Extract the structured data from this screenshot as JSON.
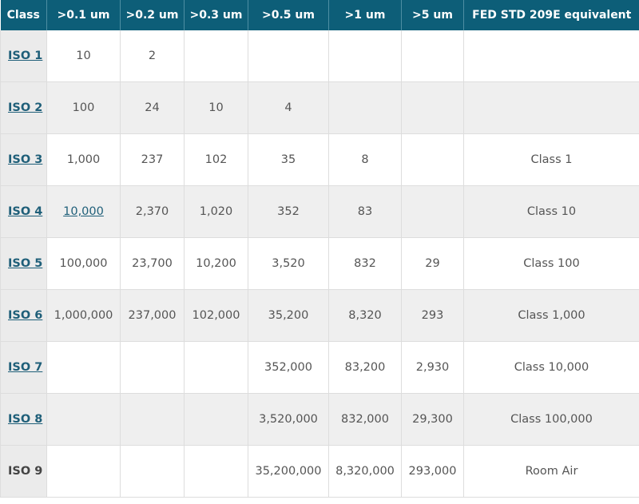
{
  "table": {
    "headers": [
      "Class",
      ">0.1 um",
      ">0.2 um",
      ">0.3 um",
      ">0.5 um",
      ">1 um",
      ">5 um",
      "FED STD 209E equivalent"
    ],
    "rows": [
      {
        "class": "ISO 1",
        "cells": [
          "10",
          "2",
          "",
          "",
          "",
          "",
          ""
        ]
      },
      {
        "class": "ISO 2",
        "cells": [
          "100",
          "24",
          "10",
          "4",
          "",
          "",
          ""
        ]
      },
      {
        "class": "ISO 3",
        "cells": [
          "1,000",
          "237",
          "102",
          "35",
          "8",
          "",
          "Class 1"
        ]
      },
      {
        "class": "ISO 4",
        "cells": [
          "10,000",
          "2,370",
          "1,020",
          "352",
          "83",
          "",
          "Class 10"
        ]
      },
      {
        "class": "ISO 5",
        "cells": [
          "100,000",
          "23,700",
          "10,200",
          "3,520",
          "832",
          "29",
          "Class 100"
        ]
      },
      {
        "class": "ISO 6",
        "cells": [
          "1,000,000",
          "237,000",
          "102,000",
          "35,200",
          "8,320",
          "293",
          "Class 1,000"
        ]
      },
      {
        "class": "ISO 7",
        "cells": [
          "",
          "",
          "",
          "352,000",
          "83,200",
          "2,930",
          "Class 10,000"
        ]
      },
      {
        "class": "ISO 8",
        "cells": [
          "",
          "",
          "",
          "3,520,000",
          "832,000",
          "29,300",
          "Class 100,000"
        ]
      },
      {
        "class": "ISO 9",
        "cells": [
          "",
          "",
          "",
          "35,200,000",
          "8,320,000",
          "293,000",
          "Room Air"
        ]
      }
    ]
  }
}
